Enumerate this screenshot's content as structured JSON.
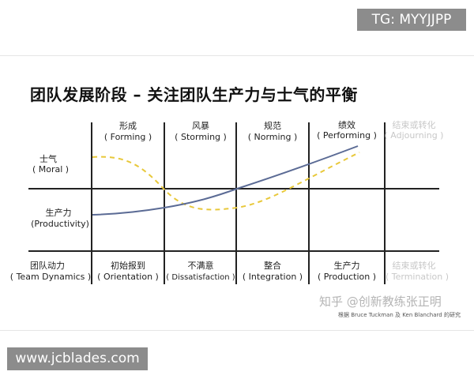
{
  "watermark_top": "TG: MYYJJPP",
  "watermark_bottom": "www.jcblades.com",
  "title": "团队发展阶段 – 关注团队生产力与士气的平衡",
  "stages": [
    {
      "cn": "形成",
      "en": "( Forming )"
    },
    {
      "cn": "风暴",
      "en": "( Storming )"
    },
    {
      "cn": "规范",
      "en": "( Norming )"
    },
    {
      "cn": "绩效",
      "en": "( Performing )"
    },
    {
      "cn": "结束或转化",
      "en": "( Adjourning )"
    }
  ],
  "row_labels": {
    "morale": {
      "cn": "士气",
      "en": "( Moral )"
    },
    "productivity": {
      "cn": "生产力",
      "en": "(Productivity)"
    },
    "dynamics": {
      "cn": "团队动力",
      "en": "( Team Dynamics )"
    }
  },
  "dynamics": [
    {
      "cn": "初始报到",
      "en": "( Orientation )"
    },
    {
      "cn": "不满意",
      "en": "( Dissatisfaction )"
    },
    {
      "cn": "整合",
      "en": "( Integration )"
    },
    {
      "cn": "生产力",
      "en": "( Production )"
    },
    {
      "cn": "结束或转化",
      "en": "( Termination )"
    }
  ],
  "credit_watermark": "知乎 @创新教练张正明",
  "credit_source": "根据 Bruce Tuckman 及 Ken Blanchard 的研究",
  "colors": {
    "productivity_line": "#5b6b95",
    "morale_line": "#e8c83a",
    "faded_text": "#c8c8c8",
    "axis": "#222222"
  }
}
